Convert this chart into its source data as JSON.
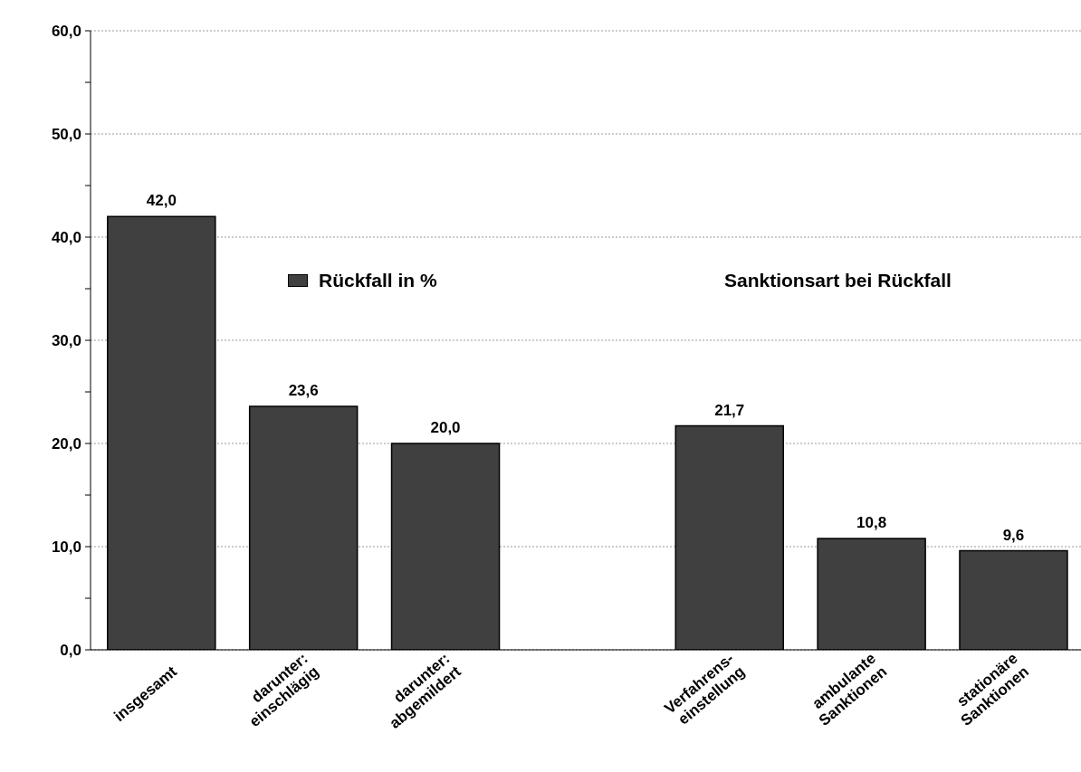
{
  "chart_data": {
    "type": "bar",
    "categories": [
      "insgesamt",
      "darunter:\neinschlägig",
      "darunter:\nabgemildert",
      null,
      "Verfahrens-\neinstellung",
      "ambulante\nSanktionen",
      "stationäre\nSanktionen"
    ],
    "series": [
      {
        "name": "Rückfall in %",
        "color": "#404040",
        "values": [
          42.0,
          23.6,
          20.0,
          null,
          21.7,
          10.8,
          9.6
        ],
        "value_labels": [
          "42,0",
          "23,6",
          "20,0",
          null,
          "21,7",
          "10,8",
          "9,6"
        ]
      }
    ],
    "ylim": [
      0,
      60
    ],
    "yticks": [
      {
        "value": 0,
        "label": "0,0"
      },
      {
        "value": 5,
        "label": null
      },
      {
        "value": 10,
        "label": "10,0"
      },
      {
        "value": 15,
        "label": null
      },
      {
        "value": 20,
        "label": "20,0"
      },
      {
        "value": 25,
        "label": null
      },
      {
        "value": 30,
        "label": "30,0"
      },
      {
        "value": 35,
        "label": null
      },
      {
        "value": 40,
        "label": "40,0"
      },
      {
        "value": 45,
        "label": null
      },
      {
        "value": 50,
        "label": "50,0"
      },
      {
        "value": 55,
        "label": null
      },
      {
        "value": 60,
        "label": "60,0"
      }
    ],
    "grid": "y",
    "legend": "top left",
    "annotations": [
      "Sanktionsart bei Rückfall"
    ]
  }
}
